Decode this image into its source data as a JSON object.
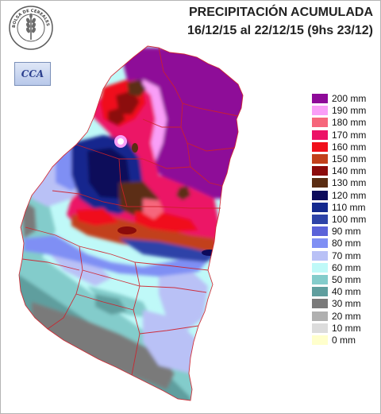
{
  "title": {
    "line1": "PRECIPITACIÓN ACUMULADA",
    "line2": "16/12/15 al 22/12/15 (9hs 23/12)"
  },
  "logos": {
    "bolsa_text": "BOLSA DE CEREALES DE ENTRE RIOS",
    "cca_text": "CCA"
  },
  "legend": [
    {
      "label": "200 mm",
      "color": "#8e0a98"
    },
    {
      "label": "190 mm",
      "color": "#f99ef7"
    },
    {
      "label": "180 mm",
      "color": "#f6667b"
    },
    {
      "label": "170 mm",
      "color": "#ec1266"
    },
    {
      "label": "160 mm",
      "color": "#f0101b"
    },
    {
      "label": "150 mm",
      "color": "#c2401b"
    },
    {
      "label": "140 mm",
      "color": "#8c0b0b"
    },
    {
      "label": "130 mm",
      "color": "#5b2d12"
    },
    {
      "label": "120 mm",
      "color": "#0c0a5a"
    },
    {
      "label": "110 mm",
      "color": "#13288e"
    },
    {
      "label": "100 mm",
      "color": "#2d43a8"
    },
    {
      "label": "90 mm",
      "color": "#5a62d9"
    },
    {
      "label": "80 mm",
      "color": "#7f8ff4"
    },
    {
      "label": "70 mm",
      "color": "#b9c1f6"
    },
    {
      "label": "60 mm",
      "color": "#bff9f8"
    },
    {
      "label": "50 mm",
      "color": "#83cccb"
    },
    {
      "label": "40 mm",
      "color": "#5f9e9e"
    },
    {
      "label": "30 mm",
      "color": "#7a7a7a"
    },
    {
      "label": "20 mm",
      "color": "#b0b0b0"
    },
    {
      "label": "10 mm",
      "color": "#dcdcdc"
    },
    {
      "label": "0 mm",
      "color": "#ffffcc"
    }
  ],
  "colors": {
    "border": "#d0202a"
  }
}
